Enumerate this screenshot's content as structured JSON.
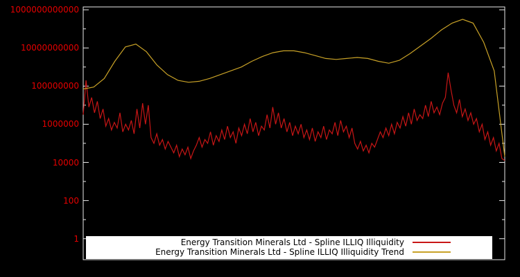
{
  "chart_data": {
    "type": "line",
    "title": "",
    "xlabel": "",
    "ylabel": "",
    "background": "#000000",
    "border_color": "#eaeaea",
    "tick_label_color": "#e60000",
    "x_range": [
      0,
      1
    ],
    "y_axis": {
      "scale": "log10",
      "v_min": -1.1,
      "v_max": 12.15,
      "ticks": [
        {
          "v": 0,
          "label": "1"
        },
        {
          "v": 2,
          "label": "100"
        },
        {
          "v": 4,
          "label": "10000"
        },
        {
          "v": 6,
          "label": "1000000"
        },
        {
          "v": 8,
          "label": "100000000"
        },
        {
          "v": 10,
          "label": "10000000000"
        },
        {
          "v": 12,
          "label": "1000000000000"
        }
      ],
      "minor_ticks": [
        1,
        3,
        5,
        7,
        9,
        11
      ]
    },
    "legend": {
      "position": "bottom-center",
      "background": "#ffffff",
      "text_color": "#000000"
    },
    "series": [
      {
        "name": "Energy Transition Minerals Ltd - Spline ILLIQ Illiquidity",
        "color": "#c81616",
        "values_log10": [
          6.5,
          8.3,
          6.9,
          7.4,
          6.6,
          7.2,
          6.3,
          6.8,
          5.9,
          6.3,
          5.7,
          6.1,
          5.8,
          6.6,
          5.6,
          6.0,
          5.7,
          6.2,
          5.5,
          6.8,
          5.8,
          7.1,
          6.0,
          7.0,
          5.3,
          5.0,
          5.5,
          4.9,
          5.2,
          4.7,
          5.1,
          4.8,
          4.5,
          4.9,
          4.3,
          4.7,
          4.4,
          4.8,
          4.2,
          4.6,
          4.9,
          5.3,
          4.8,
          5.2,
          5.0,
          5.6,
          4.9,
          5.4,
          5.1,
          5.7,
          5.2,
          5.9,
          5.3,
          5.6,
          5.0,
          5.8,
          5.4,
          6.0,
          5.5,
          6.3,
          5.6,
          6.1,
          5.4,
          5.9,
          5.7,
          6.5,
          5.8,
          6.9,
          6.0,
          6.6,
          5.8,
          6.3,
          5.6,
          6.1,
          5.4,
          5.9,
          5.5,
          6.0,
          5.3,
          5.7,
          5.2,
          5.8,
          5.1,
          5.6,
          5.3,
          5.9,
          5.2,
          5.7,
          5.5,
          6.1,
          5.4,
          6.2,
          5.6,
          5.9,
          5.3,
          5.8,
          5.0,
          4.7,
          5.1,
          4.6,
          4.9,
          4.5,
          5.0,
          4.8,
          5.2,
          5.6,
          5.3,
          5.8,
          5.4,
          6.0,
          5.5,
          6.1,
          5.8,
          6.4,
          5.9,
          6.6,
          6.0,
          6.8,
          6.2,
          6.5,
          6.3,
          7.0,
          6.4,
          7.2,
          6.6,
          6.9,
          6.5,
          7.1,
          7.4,
          8.7,
          7.8,
          7.0,
          6.6,
          7.3,
          6.4,
          6.8,
          6.2,
          6.6,
          6.0,
          6.3,
          5.6,
          6.0,
          5.2,
          5.6,
          4.9,
          5.3,
          4.6,
          5.0,
          4.2,
          4.1
        ]
      },
      {
        "name": "Energy Transition Minerals Ltd - Spline ILLIQ Illiquidity Trend",
        "color": "#c9a227",
        "values_log10": [
          7.85,
          7.95,
          8.4,
          9.3,
          10.05,
          10.2,
          9.8,
          9.1,
          8.6,
          8.3,
          8.2,
          8.25,
          8.4,
          8.6,
          8.8,
          9.0,
          9.3,
          9.55,
          9.75,
          9.85,
          9.85,
          9.75,
          9.6,
          9.45,
          9.4,
          9.45,
          9.5,
          9.45,
          9.3,
          9.2,
          9.35,
          9.7,
          10.1,
          10.5,
          10.95,
          11.3,
          11.5,
          11.3,
          10.3,
          8.8,
          4.3
        ]
      }
    ]
  }
}
